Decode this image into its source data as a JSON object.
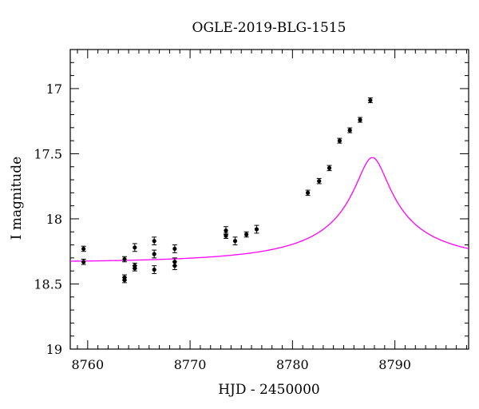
{
  "chart_data": {
    "type": "scatter",
    "title": "OGLE-2019-BLG-1515",
    "xlabel": "HJD - 2450000",
    "ylabel": "I magnitude",
    "xlim": [
      8758.3,
      8797.2
    ],
    "ylim": [
      19.0,
      16.7
    ],
    "y_inverted": true,
    "x_ticks": [
      8760,
      8770,
      8780,
      8790
    ],
    "x_tick_labels": [
      "8760",
      "8770",
      "8780",
      "8790"
    ],
    "y_ticks": [
      17,
      17.5,
      18,
      18.5,
      19
    ],
    "y_tick_labels": [
      "17",
      "17.5",
      "18",
      "18.5",
      "19"
    ],
    "grid": false,
    "colors": {
      "model": "#ff00ff",
      "points": "#000000"
    },
    "series": [
      {
        "type": "scatter_errorbar",
        "points": [
          {
            "x": 8759.6,
            "y": 18.23,
            "err": 0.02
          },
          {
            "x": 8759.6,
            "y": 18.33,
            "err": 0.02
          },
          {
            "x": 8763.6,
            "y": 18.31,
            "err": 0.02
          },
          {
            "x": 8763.6,
            "y": 18.45,
            "err": 0.02
          },
          {
            "x": 8763.6,
            "y": 18.47,
            "err": 0.02
          },
          {
            "x": 8764.6,
            "y": 18.22,
            "err": 0.03
          },
          {
            "x": 8764.6,
            "y": 18.36,
            "err": 0.02
          },
          {
            "x": 8764.6,
            "y": 18.38,
            "err": 0.02
          },
          {
            "x": 8766.5,
            "y": 18.17,
            "err": 0.03
          },
          {
            "x": 8766.5,
            "y": 18.27,
            "err": 0.03
          },
          {
            "x": 8766.5,
            "y": 18.39,
            "err": 0.03
          },
          {
            "x": 8768.5,
            "y": 18.23,
            "err": 0.03
          },
          {
            "x": 8768.5,
            "y": 18.33,
            "err": 0.03
          },
          {
            "x": 8768.5,
            "y": 18.36,
            "err": 0.03
          },
          {
            "x": 8773.5,
            "y": 18.09,
            "err": 0.03
          },
          {
            "x": 8773.5,
            "y": 18.13,
            "err": 0.02
          },
          {
            "x": 8774.4,
            "y": 18.17,
            "err": 0.03
          },
          {
            "x": 8775.5,
            "y": 18.12,
            "err": 0.02
          },
          {
            "x": 8776.5,
            "y": 18.08,
            "err": 0.03
          },
          {
            "x": 8781.5,
            "y": 17.8,
            "err": 0.02
          },
          {
            "x": 8782.6,
            "y": 17.71,
            "err": 0.02
          },
          {
            "x": 8783.6,
            "y": 17.61,
            "err": 0.02
          },
          {
            "x": 8784.6,
            "y": 17.4,
            "err": 0.015
          },
          {
            "x": 8785.6,
            "y": 17.32,
            "err": 0.015
          },
          {
            "x": 8786.6,
            "y": 17.24,
            "err": 0.012
          },
          {
            "x": 8787.6,
            "y": 17.09,
            "err": 0.01
          }
        ]
      },
      {
        "type": "line",
        "model": {
          "t0": 8787.8,
          "u0": 0.095,
          "tE": 16.0,
          "fs": 0.115,
          "I_base": 18.335
        }
      }
    ]
  }
}
